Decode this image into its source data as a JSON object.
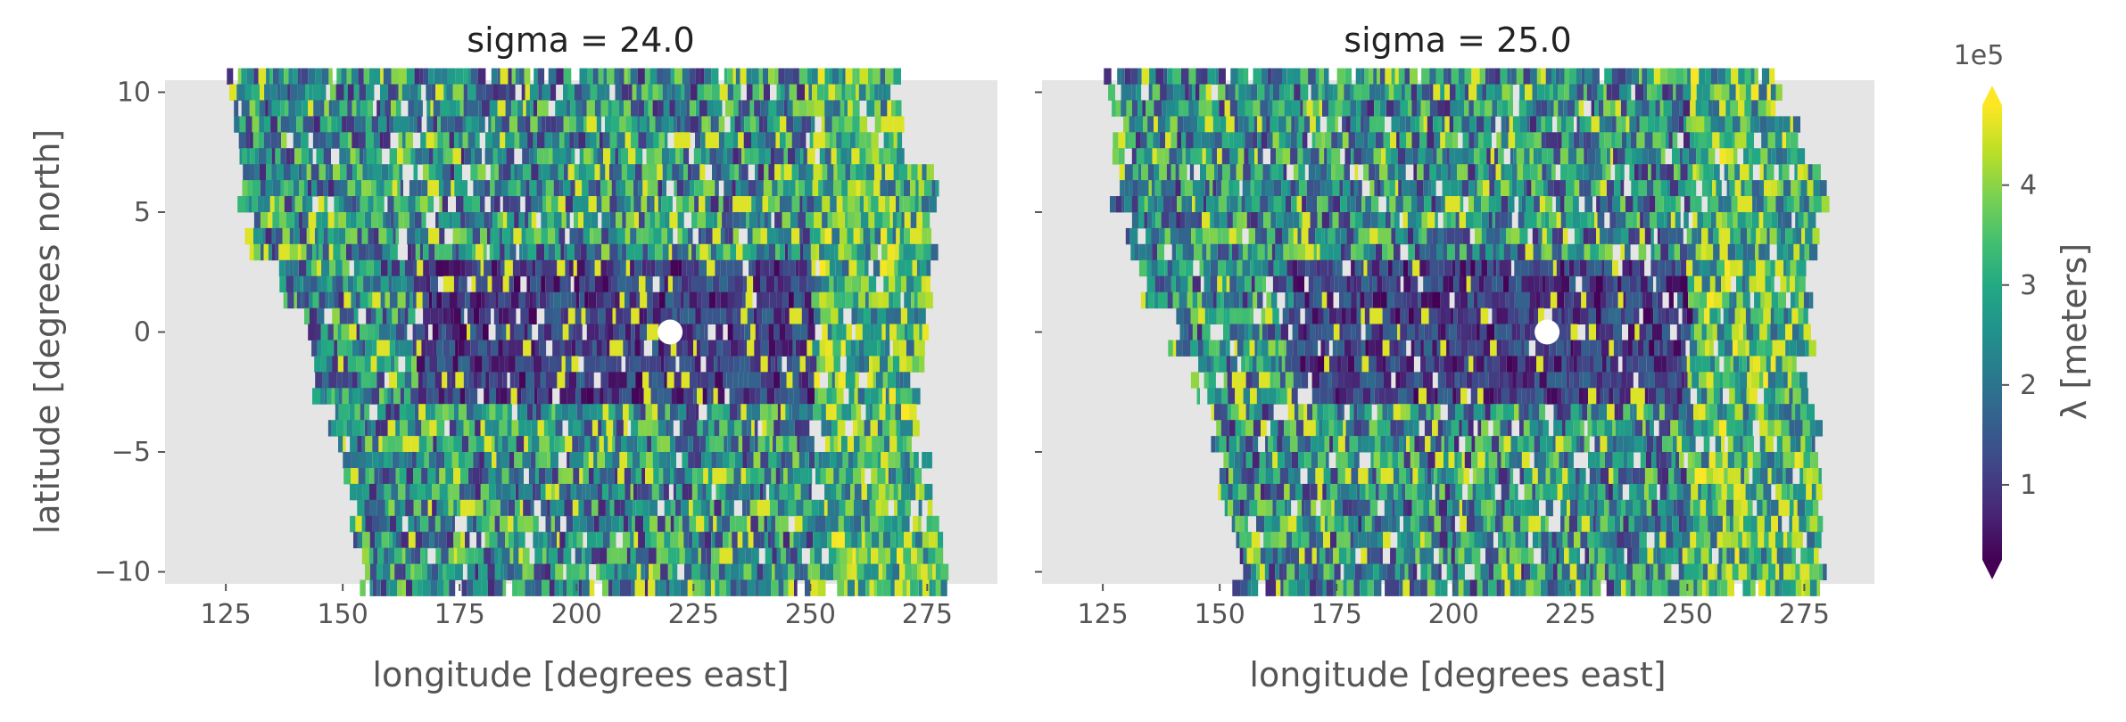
{
  "chart_data": {
    "type": "heatmap",
    "panels": [
      {
        "title": "sigma = 24.0",
        "extent_lat": [
          {
            "lat": 10,
            "lon_start": 126,
            "lon_end": 268
          },
          {
            "lat": 8,
            "lon_start": 128,
            "lon_end": 270
          },
          {
            "lat": 6,
            "lon_start": 128,
            "lon_end": 277
          },
          {
            "lat": 4,
            "lon_start": 130,
            "lon_end": 275
          },
          {
            "lat": 2,
            "lon_start": 136,
            "lon_end": 275
          },
          {
            "lat": 0,
            "lon_start": 142,
            "lon_end": 274
          },
          {
            "lat": -2,
            "lon_start": 144,
            "lon_end": 272
          },
          {
            "lat": -4,
            "lon_start": 148,
            "lon_end": 272
          },
          {
            "lat": -6,
            "lon_start": 150,
            "lon_end": 274
          },
          {
            "lat": -8,
            "lon_start": 152,
            "lon_end": 277
          },
          {
            "lat": -10,
            "lon_start": 154,
            "lon_end": 277
          }
        ],
        "marker": {
          "lon": 220,
          "lat": 0
        },
        "seed": 7
      },
      {
        "title": "sigma = 25.0",
        "extent_lat": [
          {
            "lat": 10,
            "lon_start": 126,
            "lon_end": 270
          },
          {
            "lat": 8,
            "lon_start": 128,
            "lon_end": 274
          },
          {
            "lat": 6,
            "lon_start": 128,
            "lon_end": 278
          },
          {
            "lat": 4,
            "lon_start": 130,
            "lon_end": 277
          },
          {
            "lat": 2,
            "lon_start": 134,
            "lon_end": 276
          },
          {
            "lat": 0,
            "lon_start": 140,
            "lon_end": 275
          },
          {
            "lat": -2,
            "lon_start": 144,
            "lon_end": 274
          },
          {
            "lat": -4,
            "lon_start": 148,
            "lon_end": 276
          },
          {
            "lat": -6,
            "lon_start": 150,
            "lon_end": 277
          },
          {
            "lat": -8,
            "lon_start": 152,
            "lon_end": 278
          },
          {
            "lat": -10,
            "lon_start": 154,
            "lon_end": 278
          }
        ],
        "marker": {
          "lon": 220,
          "lat": 0
        },
        "seed": 19
      }
    ],
    "xlabel": "longitude [degrees east]",
    "ylabel": "latitude [degrees north]",
    "xlim": [
      112,
      290
    ],
    "ylim": [
      -10.5,
      10.5
    ],
    "xticks": [
      125,
      150,
      175,
      200,
      225,
      250,
      275
    ],
    "xtick_labels": [
      "125",
      "150",
      "175",
      "200",
      "225",
      "250",
      "275"
    ],
    "yticks": [
      10,
      5,
      0,
      -5,
      -10
    ],
    "ytick_labels": [
      "10",
      "5",
      "0",
      "−5",
      "−10"
    ],
    "colorbar": {
      "label": "λ [meters]",
      "offset_label": "1e5",
      "range": [
        0.25,
        4.8
      ],
      "ticks": [
        1,
        2,
        3,
        4
      ],
      "tick_labels": [
        "1",
        "2",
        "3",
        "4"
      ],
      "extend": "both",
      "colormap": "viridis"
    },
    "grid": false,
    "background": "#e5e5e5"
  },
  "colors": {
    "panel_background": "#e5e5e5",
    "marker": "#ffffff",
    "text": "#555555",
    "title": "#222222"
  }
}
